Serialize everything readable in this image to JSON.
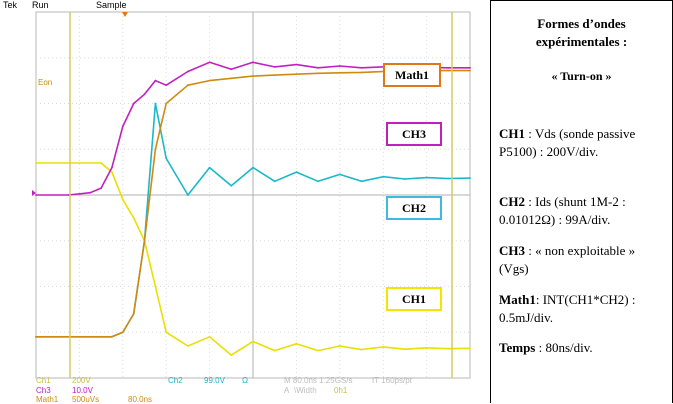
{
  "scope": {
    "brand": "Tek",
    "run_state": "Run",
    "acq_mode": "Sample",
    "trace_labels": {
      "math1": "Math1",
      "ch3": "CH3",
      "ch2": "CH2",
      "ch1": "CH1"
    },
    "screen_text": {
      "eon": "Eon"
    },
    "readout": {
      "ch1_label": "Ch1",
      "ch1_value": "200V",
      "ch3_label": "Ch3",
      "ch3_value": "10.0V",
      "math1_label": "Math1",
      "math1_value": "500uVs",
      "math1_time": "80.0ns",
      "ch2_label": "Ch2",
      "ch2_value": "99.0V",
      "ch2_unit": "Ω",
      "timebase": "M 80.0ns 1.25GS/s",
      "record": "IT 160ps/pt",
      "trigger_label": "A",
      "trigger_slope": "\\Width",
      "trigger_source": "0h1"
    },
    "colors": {
      "ch1": "#e8e000",
      "ch2": "#1ab8c8",
      "ch3": "#c020c0",
      "math1": "#d08a10",
      "ch1_box": "#f2e600",
      "ch2_box": "#40b8e0",
      "ch3_box": "#c020c0",
      "math1_box": "#e07818"
    }
  },
  "panel": {
    "title_line1": "Formes d’ondes",
    "title_line2": "expérimentales :",
    "subtitle": "« Turn-on »",
    "items": [
      {
        "key": "CH1",
        "text": " : Vds (sonde passive P5100) : 200V/div."
      },
      {
        "key": "CH2",
        "text": " : Ids (shunt 1M-2 : 0.01012Ω) : 99A/div."
      },
      {
        "key": "CH3",
        "text": " : « non exploitable » (Vgs)"
      },
      {
        "key": "Math1",
        "text": ": INT(CH1*CH2) : 0.5mJ/div."
      },
      {
        "key": "Temps",
        "text": " : 80ns/div."
      }
    ]
  },
  "chart_data": {
    "type": "line",
    "x_unit": "ns",
    "x_range": [
      0,
      800
    ],
    "xlabel": "",
    "ylabel": "",
    "grid": true,
    "series": [
      {
        "name": "CH1",
        "x": [
          0,
          120,
          140,
          160,
          180,
          200,
          220,
          240,
          280,
          320,
          360,
          400,
          440,
          480,
          520,
          560,
          600,
          640,
          680,
          720,
          760,
          800
        ],
        "y": [
          4.7,
          4.7,
          4.5,
          3.9,
          3.5,
          3.0,
          2.0,
          1.0,
          0.7,
          0.9,
          0.5,
          0.8,
          0.6,
          0.75,
          0.6,
          0.7,
          0.62,
          0.68,
          0.63,
          0.66,
          0.64,
          0.65
        ]
      },
      {
        "name": "CH2",
        "x": [
          0,
          120,
          140,
          160,
          180,
          200,
          220,
          240,
          280,
          320,
          360,
          400,
          440,
          480,
          520,
          560,
          600,
          640,
          680,
          720,
          760,
          800
        ],
        "y": [
          0.9,
          0.9,
          0.9,
          1.0,
          1.4,
          3.0,
          6.0,
          4.8,
          4.0,
          4.6,
          4.2,
          4.6,
          4.3,
          4.5,
          4.3,
          4.45,
          4.3,
          4.4,
          4.35,
          4.38,
          4.36,
          4.37
        ]
      },
      {
        "name": "CH3",
        "x": [
          0,
          60,
          100,
          120,
          140,
          160,
          180,
          200,
          220,
          240,
          280,
          320,
          360,
          400,
          440,
          480,
          520,
          560,
          600,
          640,
          680,
          720,
          760,
          800
        ],
        "y": [
          4.0,
          4.0,
          4.05,
          4.15,
          4.6,
          5.5,
          6.0,
          6.2,
          6.5,
          6.4,
          6.7,
          6.9,
          6.75,
          6.9,
          6.8,
          6.85,
          6.78,
          6.82,
          6.78,
          6.8,
          6.78,
          6.79,
          6.78,
          6.78
        ]
      },
      {
        "name": "Math1",
        "x": [
          0,
          140,
          160,
          180,
          200,
          220,
          240,
          280,
          320,
          360,
          400,
          440,
          480,
          520,
          560,
          600,
          640,
          680,
          720,
          760,
          800
        ],
        "y": [
          0.9,
          0.9,
          1.0,
          1.4,
          3.0,
          5.0,
          6.0,
          6.4,
          6.5,
          6.55,
          6.6,
          6.62,
          6.64,
          6.66,
          6.67,
          6.68,
          6.7,
          6.7,
          6.72,
          6.72,
          6.72
        ]
      }
    ]
  }
}
